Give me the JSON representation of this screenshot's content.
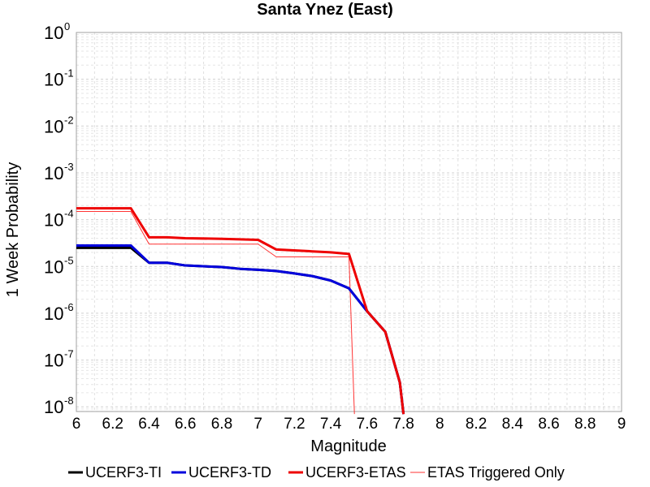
{
  "chart_data": {
    "type": "line",
    "title": "Santa Ynez (East)",
    "xlabel": "Magnitude",
    "ylabel": "1 Week Probability",
    "xlim": [
      6,
      9
    ],
    "ylim_log10": [
      -8.1,
      0
    ],
    "y_scale": "log",
    "grid": true,
    "x_ticks": [
      "6",
      "6.2",
      "6.4",
      "6.6",
      "6.8",
      "7",
      "7.2",
      "7.4",
      "7.6",
      "7.8",
      "8",
      "8.2",
      "8.4",
      "8.6",
      "8.8",
      "9"
    ],
    "y_ticks": [
      {
        "base": "10",
        "exp": "0"
      },
      {
        "base": "10",
        "exp": "-1"
      },
      {
        "base": "10",
        "exp": "-2"
      },
      {
        "base": "10",
        "exp": "-3"
      },
      {
        "base": "10",
        "exp": "-4"
      },
      {
        "base": "10",
        "exp": "-5"
      },
      {
        "base": "10",
        "exp": "-6"
      },
      {
        "base": "10",
        "exp": "-7"
      },
      {
        "base": "10",
        "exp": "-8"
      }
    ],
    "legend_position": "bottom",
    "series": [
      {
        "name": "UCERF3-TI",
        "color": "#000000",
        "width": 3,
        "points": [
          [
            6.0,
            2.5e-05
          ],
          [
            6.3,
            2.5e-05
          ],
          [
            6.4,
            1.2e-05
          ],
          [
            6.5,
            1.2e-05
          ],
          [
            6.6,
            1.05e-05
          ],
          [
            6.8,
            9.7e-06
          ],
          [
            6.9,
            8.9e-06
          ],
          [
            7.0,
            8.5e-06
          ],
          [
            7.1,
            8e-06
          ],
          [
            7.2,
            7.1e-06
          ],
          [
            7.3,
            6.2e-06
          ],
          [
            7.4,
            5e-06
          ],
          [
            7.5,
            3.4e-06
          ],
          [
            7.6,
            1.1e-06
          ],
          [
            7.7,
            4e-07
          ],
          [
            7.78,
            3.3e-08
          ],
          [
            7.8,
            7e-09
          ]
        ]
      },
      {
        "name": "UCERF3-TD",
        "color": "#0000dd",
        "width": 3,
        "points": [
          [
            6.0,
            2.8e-05
          ],
          [
            6.3,
            2.8e-05
          ],
          [
            6.4,
            1.2e-05
          ],
          [
            6.5,
            1.2e-05
          ],
          [
            6.6,
            1.05e-05
          ],
          [
            6.8,
            9.7e-06
          ],
          [
            6.9,
            8.9e-06
          ],
          [
            7.0,
            8.5e-06
          ],
          [
            7.1,
            8e-06
          ],
          [
            7.2,
            7.1e-06
          ],
          [
            7.3,
            6.2e-06
          ],
          [
            7.4,
            5e-06
          ],
          [
            7.5,
            3.4e-06
          ],
          [
            7.6,
            1.1e-06
          ],
          [
            7.7,
            4e-07
          ],
          [
            7.78,
            3.3e-08
          ],
          [
            7.8,
            7e-09
          ]
        ]
      },
      {
        "name": "UCERF3-ETAS",
        "color": "#ee0000",
        "width": 3,
        "points": [
          [
            6.0,
            0.000175
          ],
          [
            6.3,
            0.000175
          ],
          [
            6.4,
            4.2e-05
          ],
          [
            6.5,
            4.2e-05
          ],
          [
            6.6,
            4e-05
          ],
          [
            6.8,
            3.9e-05
          ],
          [
            7.0,
            3.7e-05
          ],
          [
            7.1,
            2.3e-05
          ],
          [
            7.3,
            2.1e-05
          ],
          [
            7.4,
            2e-05
          ],
          [
            7.5,
            1.85e-05
          ],
          [
            7.6,
            1.1e-06
          ],
          [
            7.7,
            4e-07
          ],
          [
            7.78,
            3.3e-08
          ],
          [
            7.8,
            7e-09
          ]
        ]
      },
      {
        "name": "ETAS Triggered Only",
        "color": "#ff3333",
        "width": 1,
        "points": [
          [
            6.0,
            0.00015
          ],
          [
            6.3,
            0.00015
          ],
          [
            6.4,
            3e-05
          ],
          [
            7.0,
            3e-05
          ],
          [
            7.1,
            1.6e-05
          ],
          [
            7.5,
            1.6e-05
          ],
          [
            7.53,
            7e-09
          ]
        ]
      }
    ]
  }
}
